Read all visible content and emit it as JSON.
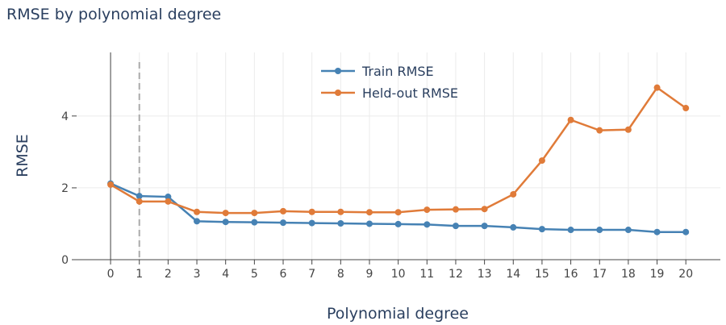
{
  "chart_data": {
    "type": "line",
    "title": "RMSE by polynomial degree",
    "x_label": "Polynomial degree",
    "y_label": "RMSE",
    "x": [
      0,
      1,
      2,
      3,
      4,
      5,
      6,
      7,
      8,
      9,
      10,
      11,
      12,
      13,
      14,
      15,
      16,
      17,
      18,
      19,
      20
    ],
    "series": [
      {
        "name": "Train RMSE",
        "color": "#4682b4",
        "values": [
          2.12,
          1.77,
          1.75,
          1.07,
          1.05,
          1.04,
          1.03,
          1.02,
          1.01,
          1.0,
          0.99,
          0.98,
          0.94,
          0.94,
          0.9,
          0.85,
          0.83,
          0.83,
          0.83,
          0.77,
          0.77
        ]
      },
      {
        "name": "Held-out RMSE",
        "color": "#e07b39",
        "values": [
          2.09,
          1.62,
          1.62,
          1.33,
          1.3,
          1.3,
          1.35,
          1.33,
          1.33,
          1.32,
          1.32,
          1.39,
          1.4,
          1.41,
          1.82,
          2.76,
          3.89,
          3.6,
          3.62,
          4.79,
          4.22
        ]
      }
    ],
    "xlim": [
      -1.18,
      21.2
    ],
    "ylim": [
      0,
      5.77
    ],
    "xticks": [
      0,
      1,
      2,
      3,
      4,
      5,
      6,
      7,
      8,
      9,
      10,
      11,
      12,
      13,
      14,
      15,
      16,
      17,
      18,
      19,
      20
    ],
    "yticks": [
      0,
      2,
      4
    ],
    "vline": 1,
    "grid": true,
    "legend": "top"
  }
}
